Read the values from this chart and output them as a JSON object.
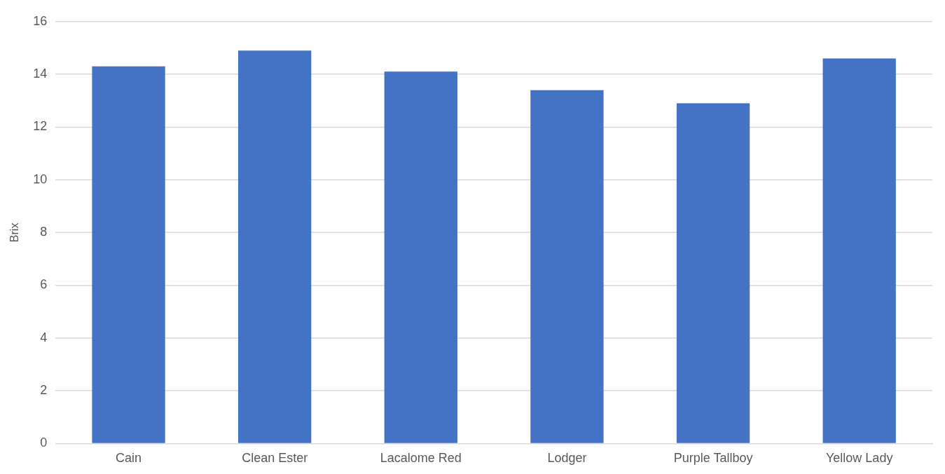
{
  "chart_data": {
    "type": "bar",
    "ylabel": "Brix",
    "categories": [
      "Cain",
      "Clean Ester",
      "Lacalome Red",
      "Lodger",
      "Purple Tallboy",
      "Yellow Lady"
    ],
    "values": [
      14.3,
      14.9,
      14.1,
      13.4,
      12.9,
      14.6
    ],
    "color": "#4472c4",
    "ylim": [
      0,
      16
    ],
    "yticks": [
      0,
      2,
      4,
      6,
      8,
      10,
      12,
      14,
      16
    ],
    "grid": "y",
    "legend": false
  }
}
